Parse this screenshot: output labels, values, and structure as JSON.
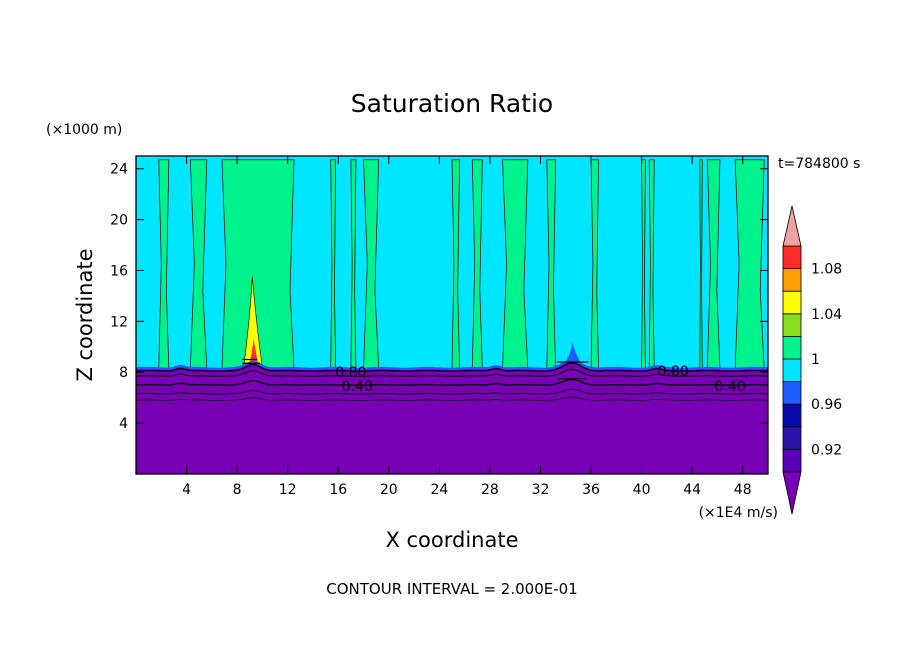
{
  "chart_data": {
    "type": "heatmap",
    "title": "Saturation Ratio",
    "xlabel": "X coordinate",
    "ylabel": "Z coordinate",
    "x_unit": "(×1E4 m/s)",
    "y_unit": "(×1000 m)",
    "time_label": "t=784800 s",
    "footer": "CONTOUR INTERVAL = 2.000E-01",
    "xlim": [
      0,
      50
    ],
    "ylim": [
      0,
      25
    ],
    "x_ticks": [
      4,
      8,
      12,
      16,
      20,
      24,
      28,
      32,
      36,
      40,
      44,
      48
    ],
    "x_tick_labels": [
      "4",
      "8",
      "12",
      "16",
      "20",
      "24",
      "28",
      "32",
      "36",
      "40",
      "44",
      "48"
    ],
    "y_ticks": [
      4,
      8,
      12,
      16,
      20,
      24
    ],
    "y_tick_labels": [
      "4",
      "8",
      "12",
      "16",
      "20",
      "24"
    ],
    "colorbar": {
      "levels": [
        0.9,
        0.92,
        0.94,
        0.96,
        0.98,
        1.0,
        1.02,
        1.04,
        1.06,
        1.08,
        1.1
      ],
      "colors": [
        "#5a00b4",
        "#2a14a8",
        "#0a0aa8",
        "#1e5cff",
        "#00e6ff",
        "#00f28c",
        "#8cdc1e",
        "#ffff00",
        "#ffa000",
        "#ff2a2a",
        "#f0a0a0"
      ],
      "under_color": "#7800b4",
      "over_color": "#f0a0a0",
      "tick_labels": [
        "0.92",
        "0.96",
        "1",
        "1.04",
        "1.08"
      ],
      "tick_values": [
        0.92,
        0.96,
        1.0,
        1.04,
        1.08
      ]
    },
    "contour_labels": [
      {
        "text": "0.80",
        "x": 17.0,
        "y": 8.0
      },
      {
        "text": "0.40",
        "x": 17.5,
        "y": 6.9
      },
      {
        "text": "0.80",
        "x": 42.5,
        "y": 8.1
      },
      {
        "text": "0.40",
        "x": 47.0,
        "y": 6.9
      }
    ],
    "approx_regions": {
      "low_layer_top_z": 8.3,
      "dry_fill_value": 0.2,
      "upper_background_value": 0.99,
      "near_saturated_columns_x": [
        [
          1.8,
          2.6
        ],
        [
          4.3,
          5.6
        ],
        [
          6.8,
          12.5
        ],
        [
          15.4,
          15.8
        ],
        [
          17.0,
          17.4
        ],
        [
          18.0,
          19.2
        ],
        [
          25.0,
          25.6
        ],
        [
          26.6,
          27.4
        ],
        [
          29.0,
          31.0
        ],
        [
          32.5,
          33.2
        ],
        [
          36.0,
          36.6
        ],
        [
          40.0,
          40.3
        ],
        [
          40.6,
          41.0
        ],
        [
          44.6,
          44.8
        ],
        [
          45.2,
          46.2
        ],
        [
          47.4,
          49.7
        ]
      ],
      "peak": {
        "x": 9.2,
        "z": 9.0,
        "value": 1.08
      },
      "dip": {
        "x": 34.5,
        "z": 9.0,
        "value": 0.97
      }
    }
  }
}
